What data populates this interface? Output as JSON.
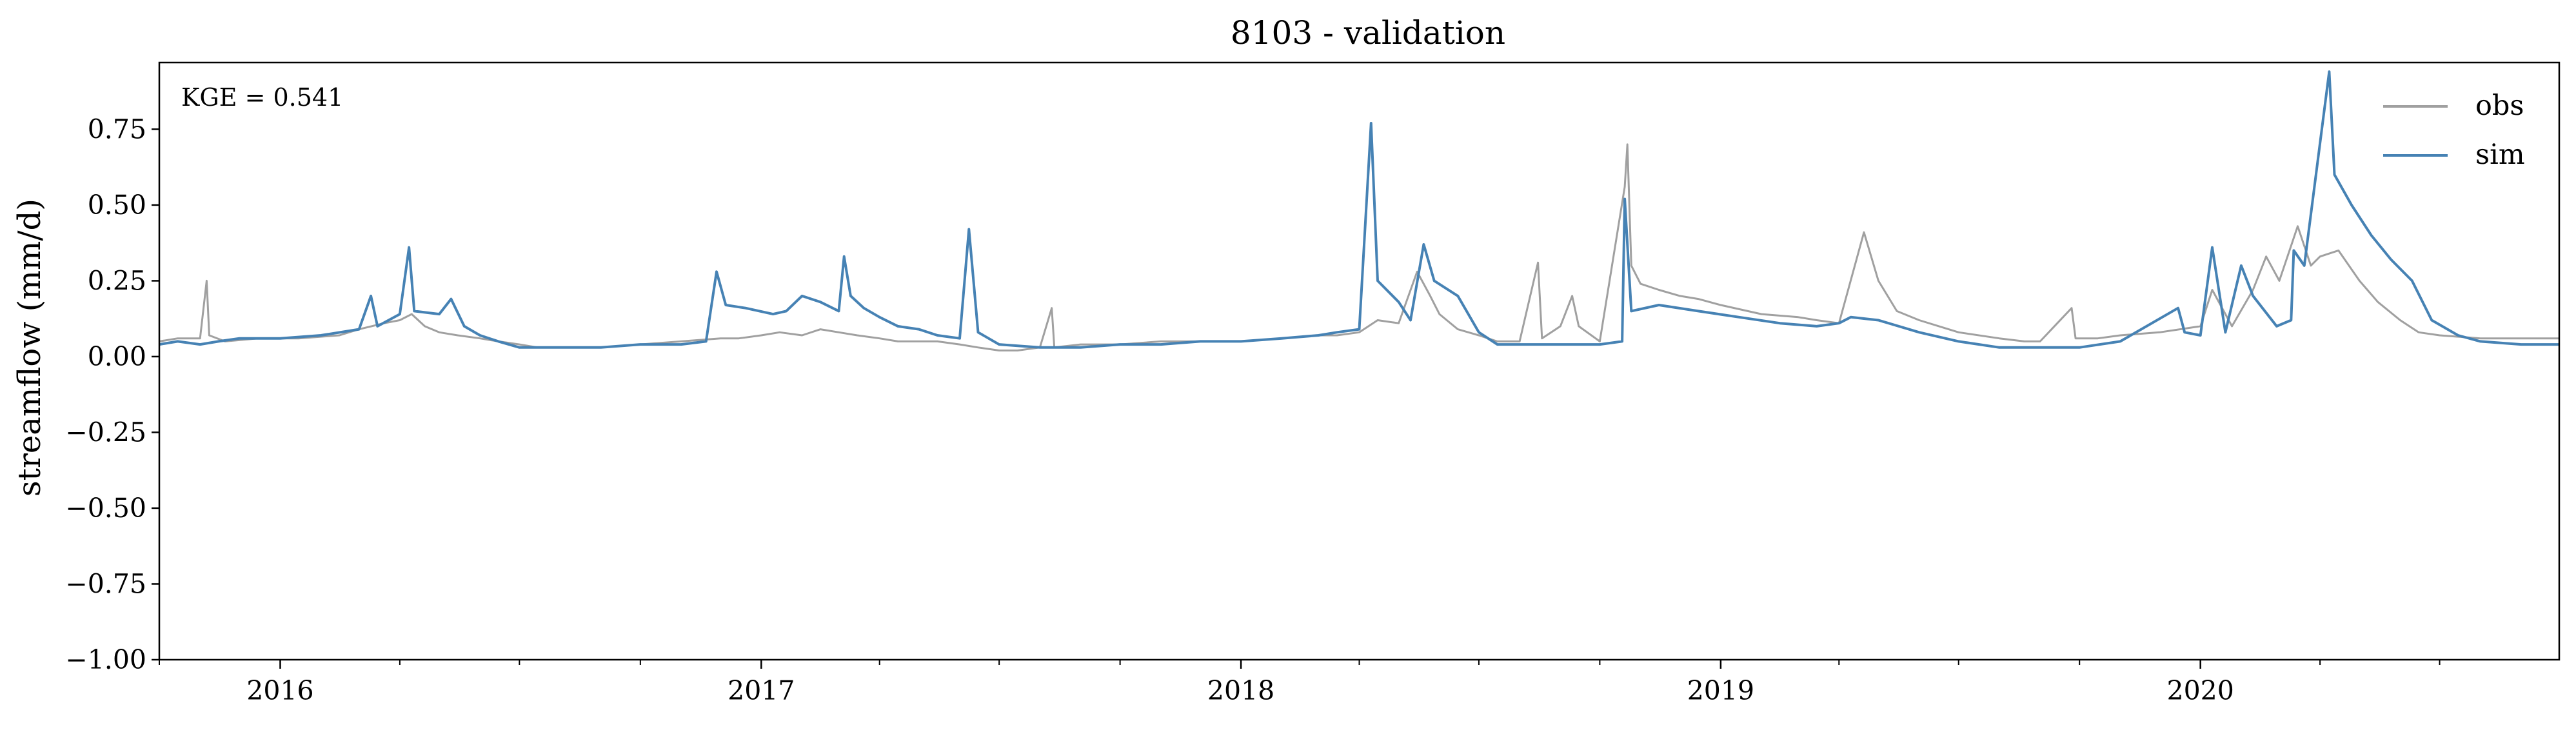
{
  "chart_data": {
    "type": "line",
    "title": "8103 - validation",
    "xlabel": "",
    "ylabel": "streamflow (mm/d)",
    "annotation": "KGE = 0.541",
    "xlim": [
      "2015-10-01",
      "2020-09-30"
    ],
    "ylim": [
      -1.0,
      0.97
    ],
    "grid": false,
    "legend_position": "top-right",
    "x_ticks": [
      "2016",
      "2017",
      "2018",
      "2019",
      "2020"
    ],
    "y_ticks": [
      -1.0,
      -0.75,
      -0.5,
      -0.25,
      0.0,
      0.25,
      0.5,
      0.75
    ],
    "series": [
      {
        "name": "obs",
        "color": "#a0a0a0",
        "points": [
          [
            "2015-10-01",
            0.05
          ],
          [
            "2015-10-15",
            0.06
          ],
          [
            "2015-11-01",
            0.06
          ],
          [
            "2015-11-06",
            0.25
          ],
          [
            "2015-11-08",
            0.07
          ],
          [
            "2015-11-20",
            0.05
          ],
          [
            "2015-12-15",
            0.06
          ],
          [
            "2016-01-15",
            0.06
          ],
          [
            "2016-02-15",
            0.07
          ],
          [
            "2016-03-01",
            0.09
          ],
          [
            "2016-03-20",
            0.11
          ],
          [
            "2016-04-01",
            0.12
          ],
          [
            "2016-04-10",
            0.14
          ],
          [
            "2016-04-20",
            0.1
          ],
          [
            "2016-05-01",
            0.08
          ],
          [
            "2016-05-15",
            0.07
          ],
          [
            "2016-06-01",
            0.06
          ],
          [
            "2016-06-15",
            0.05
          ],
          [
            "2016-07-01",
            0.04
          ],
          [
            "2016-07-15",
            0.03
          ],
          [
            "2016-08-01",
            0.03
          ],
          [
            "2016-08-15",
            0.03
          ],
          [
            "2016-09-01",
            0.03
          ],
          [
            "2016-10-01",
            0.04
          ],
          [
            "2016-11-01",
            0.05
          ],
          [
            "2016-12-01",
            0.06
          ],
          [
            "2016-12-15",
            0.06
          ],
          [
            "2017-01-01",
            0.07
          ],
          [
            "2017-01-15",
            0.08
          ],
          [
            "2017-02-01",
            0.07
          ],
          [
            "2017-02-15",
            0.09
          ],
          [
            "2017-03-01",
            0.08
          ],
          [
            "2017-03-15",
            0.07
          ],
          [
            "2017-04-01",
            0.06
          ],
          [
            "2017-04-15",
            0.05
          ],
          [
            "2017-05-01",
            0.05
          ],
          [
            "2017-05-15",
            0.05
          ],
          [
            "2017-06-01",
            0.04
          ],
          [
            "2017-06-15",
            0.03
          ],
          [
            "2017-07-01",
            0.02
          ],
          [
            "2017-07-15",
            0.02
          ],
          [
            "2017-08-01",
            0.03
          ],
          [
            "2017-08-10",
            0.16
          ],
          [
            "2017-08-12",
            0.03
          ],
          [
            "2017-09-01",
            0.04
          ],
          [
            "2017-10-01",
            0.04
          ],
          [
            "2017-11-01",
            0.05
          ],
          [
            "2017-12-01",
            0.05
          ],
          [
            "2018-01-01",
            0.05
          ],
          [
            "2018-02-01",
            0.06
          ],
          [
            "2018-03-01",
            0.07
          ],
          [
            "2018-03-15",
            0.07
          ],
          [
            "2018-04-01",
            0.08
          ],
          [
            "2018-04-15",
            0.12
          ],
          [
            "2018-05-01",
            0.11
          ],
          [
            "2018-05-15",
            0.28
          ],
          [
            "2018-05-25",
            0.2
          ],
          [
            "2018-06-01",
            0.14
          ],
          [
            "2018-06-15",
            0.09
          ],
          [
            "2018-07-01",
            0.07
          ],
          [
            "2018-07-15",
            0.05
          ],
          [
            "2018-08-01",
            0.05
          ],
          [
            "2018-08-15",
            0.31
          ],
          [
            "2018-08-18",
            0.06
          ],
          [
            "2018-09-01",
            0.1
          ],
          [
            "2018-09-10",
            0.2
          ],
          [
            "2018-09-15",
            0.1
          ],
          [
            "2018-10-01",
            0.05
          ],
          [
            "2018-10-20",
            0.56
          ],
          [
            "2018-10-22",
            0.7
          ],
          [
            "2018-10-25",
            0.3
          ],
          [
            "2018-11-01",
            0.24
          ],
          [
            "2018-11-15",
            0.22
          ],
          [
            "2018-12-01",
            0.2
          ],
          [
            "2018-12-15",
            0.19
          ],
          [
            "2019-01-01",
            0.17
          ],
          [
            "2019-02-01",
            0.14
          ],
          [
            "2019-03-01",
            0.13
          ],
          [
            "2019-03-15",
            0.12
          ],
          [
            "2019-04-01",
            0.11
          ],
          [
            "2019-04-20",
            0.41
          ],
          [
            "2019-05-01",
            0.25
          ],
          [
            "2019-05-15",
            0.15
          ],
          [
            "2019-06-01",
            0.12
          ],
          [
            "2019-07-01",
            0.08
          ],
          [
            "2019-08-01",
            0.06
          ],
          [
            "2019-08-20",
            0.05
          ],
          [
            "2019-09-01",
            0.05
          ],
          [
            "2019-09-25",
            0.16
          ],
          [
            "2019-09-28",
            0.06
          ],
          [
            "2019-10-15",
            0.06
          ],
          [
            "2019-11-01",
            0.07
          ],
          [
            "2019-12-01",
            0.08
          ],
          [
            "2020-01-01",
            0.1
          ],
          [
            "2020-01-10",
            0.22
          ],
          [
            "2020-01-25",
            0.1
          ],
          [
            "2020-02-10",
            0.22
          ],
          [
            "2020-02-20",
            0.33
          ],
          [
            "2020-03-01",
            0.25
          ],
          [
            "2020-03-15",
            0.43
          ],
          [
            "2020-03-25",
            0.3
          ],
          [
            "2020-04-01",
            0.33
          ],
          [
            "2020-04-15",
            0.35
          ],
          [
            "2020-05-01",
            0.25
          ],
          [
            "2020-05-15",
            0.18
          ],
          [
            "2020-06-01",
            0.12
          ],
          [
            "2020-06-15",
            0.08
          ],
          [
            "2020-07-01",
            0.07
          ],
          [
            "2020-08-01",
            0.06
          ],
          [
            "2020-09-01",
            0.06
          ],
          [
            "2020-09-30",
            0.06
          ]
        ]
      },
      {
        "name": "sim",
        "color": "#4682b4",
        "points": [
          [
            "2015-10-01",
            0.04
          ],
          [
            "2015-10-15",
            0.05
          ],
          [
            "2015-11-01",
            0.04
          ],
          [
            "2015-11-15",
            0.05
          ],
          [
            "2015-12-01",
            0.06
          ],
          [
            "2016-01-01",
            0.06
          ],
          [
            "2016-02-01",
            0.07
          ],
          [
            "2016-03-01",
            0.09
          ],
          [
            "2016-03-10",
            0.2
          ],
          [
            "2016-03-15",
            0.1
          ],
          [
            "2016-04-01",
            0.14
          ],
          [
            "2016-04-08",
            0.36
          ],
          [
            "2016-04-12",
            0.15
          ],
          [
            "2016-05-01",
            0.14
          ],
          [
            "2016-05-10",
            0.19
          ],
          [
            "2016-05-20",
            0.1
          ],
          [
            "2016-06-01",
            0.07
          ],
          [
            "2016-06-15",
            0.05
          ],
          [
            "2016-07-01",
            0.03
          ],
          [
            "2016-08-01",
            0.03
          ],
          [
            "2016-09-01",
            0.03
          ],
          [
            "2016-10-01",
            0.04
          ],
          [
            "2016-11-01",
            0.04
          ],
          [
            "2016-11-20",
            0.05
          ],
          [
            "2016-11-28",
            0.28
          ],
          [
            "2016-12-05",
            0.17
          ],
          [
            "2016-12-20",
            0.16
          ],
          [
            "2017-01-10",
            0.14
          ],
          [
            "2017-01-20",
            0.15
          ],
          [
            "2017-02-01",
            0.2
          ],
          [
            "2017-02-15",
            0.18
          ],
          [
            "2017-03-01",
            0.15
          ],
          [
            "2017-03-05",
            0.33
          ],
          [
            "2017-03-10",
            0.2
          ],
          [
            "2017-03-20",
            0.16
          ],
          [
            "2017-04-01",
            0.13
          ],
          [
            "2017-04-15",
            0.1
          ],
          [
            "2017-05-01",
            0.09
          ],
          [
            "2017-05-15",
            0.07
          ],
          [
            "2017-06-01",
            0.06
          ],
          [
            "2017-06-08",
            0.42
          ],
          [
            "2017-06-15",
            0.08
          ],
          [
            "2017-07-01",
            0.04
          ],
          [
            "2017-08-01",
            0.03
          ],
          [
            "2017-09-01",
            0.03
          ],
          [
            "2017-10-01",
            0.04
          ],
          [
            "2017-11-01",
            0.04
          ],
          [
            "2017-12-01",
            0.05
          ],
          [
            "2018-01-01",
            0.05
          ],
          [
            "2018-02-01",
            0.06
          ],
          [
            "2018-03-01",
            0.07
          ],
          [
            "2018-03-15",
            0.08
          ],
          [
            "2018-04-01",
            0.09
          ],
          [
            "2018-04-10",
            0.77
          ],
          [
            "2018-04-15",
            0.25
          ],
          [
            "2018-05-01",
            0.18
          ],
          [
            "2018-05-10",
            0.12
          ],
          [
            "2018-05-20",
            0.37
          ],
          [
            "2018-05-28",
            0.25
          ],
          [
            "2018-06-15",
            0.2
          ],
          [
            "2018-07-01",
            0.08
          ],
          [
            "2018-07-15",
            0.04
          ],
          [
            "2018-08-01",
            0.04
          ],
          [
            "2018-09-01",
            0.04
          ],
          [
            "2018-10-01",
            0.04
          ],
          [
            "2018-10-18",
            0.05
          ],
          [
            "2018-10-20",
            0.52
          ],
          [
            "2018-10-25",
            0.15
          ],
          [
            "2018-11-15",
            0.17
          ],
          [
            "2018-12-15",
            0.15
          ],
          [
            "2019-01-15",
            0.13
          ],
          [
            "2019-02-15",
            0.11
          ],
          [
            "2019-03-15",
            0.1
          ],
          [
            "2019-04-01",
            0.11
          ],
          [
            "2019-04-10",
            0.13
          ],
          [
            "2019-05-01",
            0.12
          ],
          [
            "2019-06-01",
            0.08
          ],
          [
            "2019-07-01",
            0.05
          ],
          [
            "2019-08-01",
            0.03
          ],
          [
            "2019-09-01",
            0.03
          ],
          [
            "2019-10-01",
            0.03
          ],
          [
            "2019-11-01",
            0.05
          ],
          [
            "2019-12-15",
            0.16
          ],
          [
            "2019-12-20",
            0.08
          ],
          [
            "2020-01-01",
            0.07
          ],
          [
            "2020-01-10",
            0.36
          ],
          [
            "2020-01-20",
            0.08
          ],
          [
            "2020-02-01",
            0.3
          ],
          [
            "2020-02-10",
            0.2
          ],
          [
            "2020-02-28",
            0.1
          ],
          [
            "2020-03-10",
            0.12
          ],
          [
            "2020-03-12",
            0.35
          ],
          [
            "2020-03-20",
            0.3
          ],
          [
            "2020-04-08",
            0.94
          ],
          [
            "2020-04-12",
            0.6
          ],
          [
            "2020-04-25",
            0.5
          ],
          [
            "2020-05-10",
            0.4
          ],
          [
            "2020-05-25",
            0.32
          ],
          [
            "2020-06-10",
            0.25
          ],
          [
            "2020-06-25",
            0.12
          ],
          [
            "2020-07-15",
            0.07
          ],
          [
            "2020-08-01",
            0.05
          ],
          [
            "2020-09-01",
            0.04
          ],
          [
            "2020-09-30",
            0.04
          ]
        ]
      }
    ]
  }
}
